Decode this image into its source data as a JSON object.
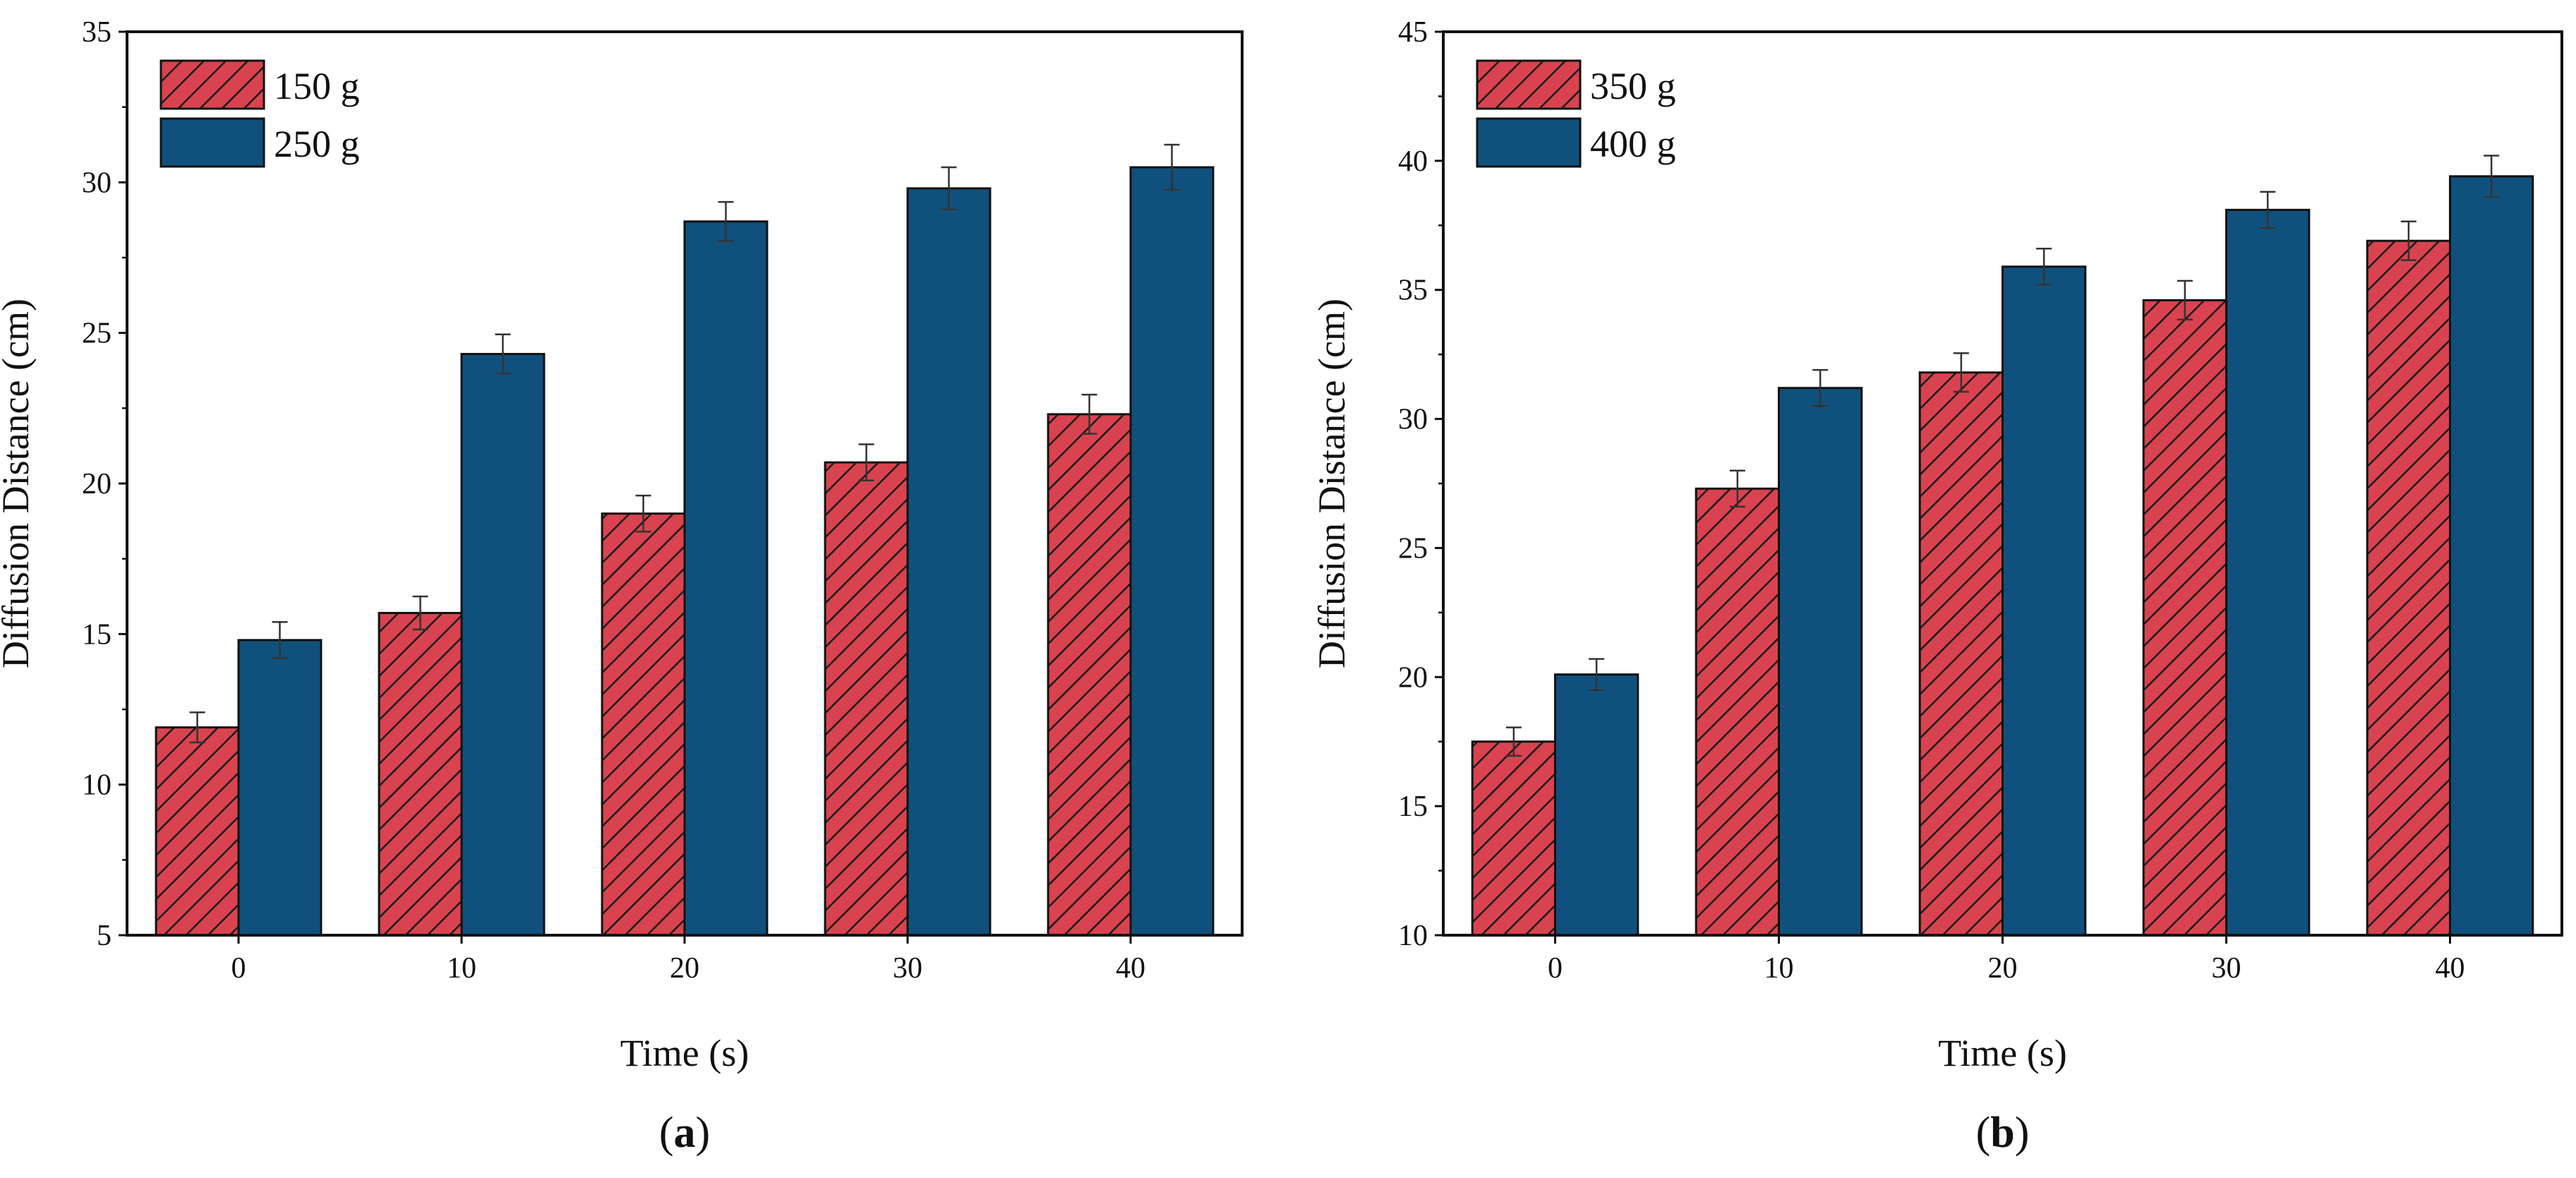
{
  "colors": {
    "series_a": "#d8434f",
    "series_b": "#10507c",
    "hatch": "#1a1a1a",
    "axis": "#111111"
  },
  "chart_data": [
    {
      "type": "bar",
      "panel_label": "a",
      "categories": [
        "0",
        "10",
        "20",
        "30",
        "40"
      ],
      "series": [
        {
          "name": "150 g",
          "values": [
            11.9,
            15.7,
            19.0,
            20.7,
            22.3
          ],
          "errors": [
            0.5,
            0.55,
            0.6,
            0.6,
            0.65
          ],
          "pattern": "hatch"
        },
        {
          "name": "250 g",
          "values": [
            14.8,
            24.3,
            28.7,
            29.8,
            30.5
          ],
          "errors": [
            0.6,
            0.65,
            0.65,
            0.7,
            0.75
          ],
          "pattern": "solid"
        }
      ],
      "xlabel": "Time (s)",
      "ylabel": "Diffusion Distance (cm)",
      "ylim": [
        5,
        35
      ],
      "yticks": [
        5,
        10,
        15,
        20,
        25,
        30,
        35
      ],
      "legend": "top-left"
    },
    {
      "type": "bar",
      "panel_label": "b",
      "categories": [
        "0",
        "10",
        "20",
        "30",
        "40"
      ],
      "series": [
        {
          "name": "350 g",
          "values": [
            17.5,
            27.3,
            31.8,
            34.6,
            36.9
          ],
          "errors": [
            0.55,
            0.7,
            0.75,
            0.75,
            0.75
          ],
          "pattern": "hatch"
        },
        {
          "name": "400 g",
          "values": [
            20.1,
            31.2,
            35.9,
            38.1,
            39.4
          ],
          "errors": [
            0.6,
            0.7,
            0.7,
            0.7,
            0.8
          ],
          "pattern": "solid"
        }
      ],
      "xlabel": "Time (s)",
      "ylabel": "Diffusion Distance (cm)",
      "ylim": [
        10,
        45
      ],
      "yticks": [
        10,
        15,
        20,
        25,
        30,
        35,
        40,
        45
      ],
      "legend": "top-left"
    }
  ]
}
